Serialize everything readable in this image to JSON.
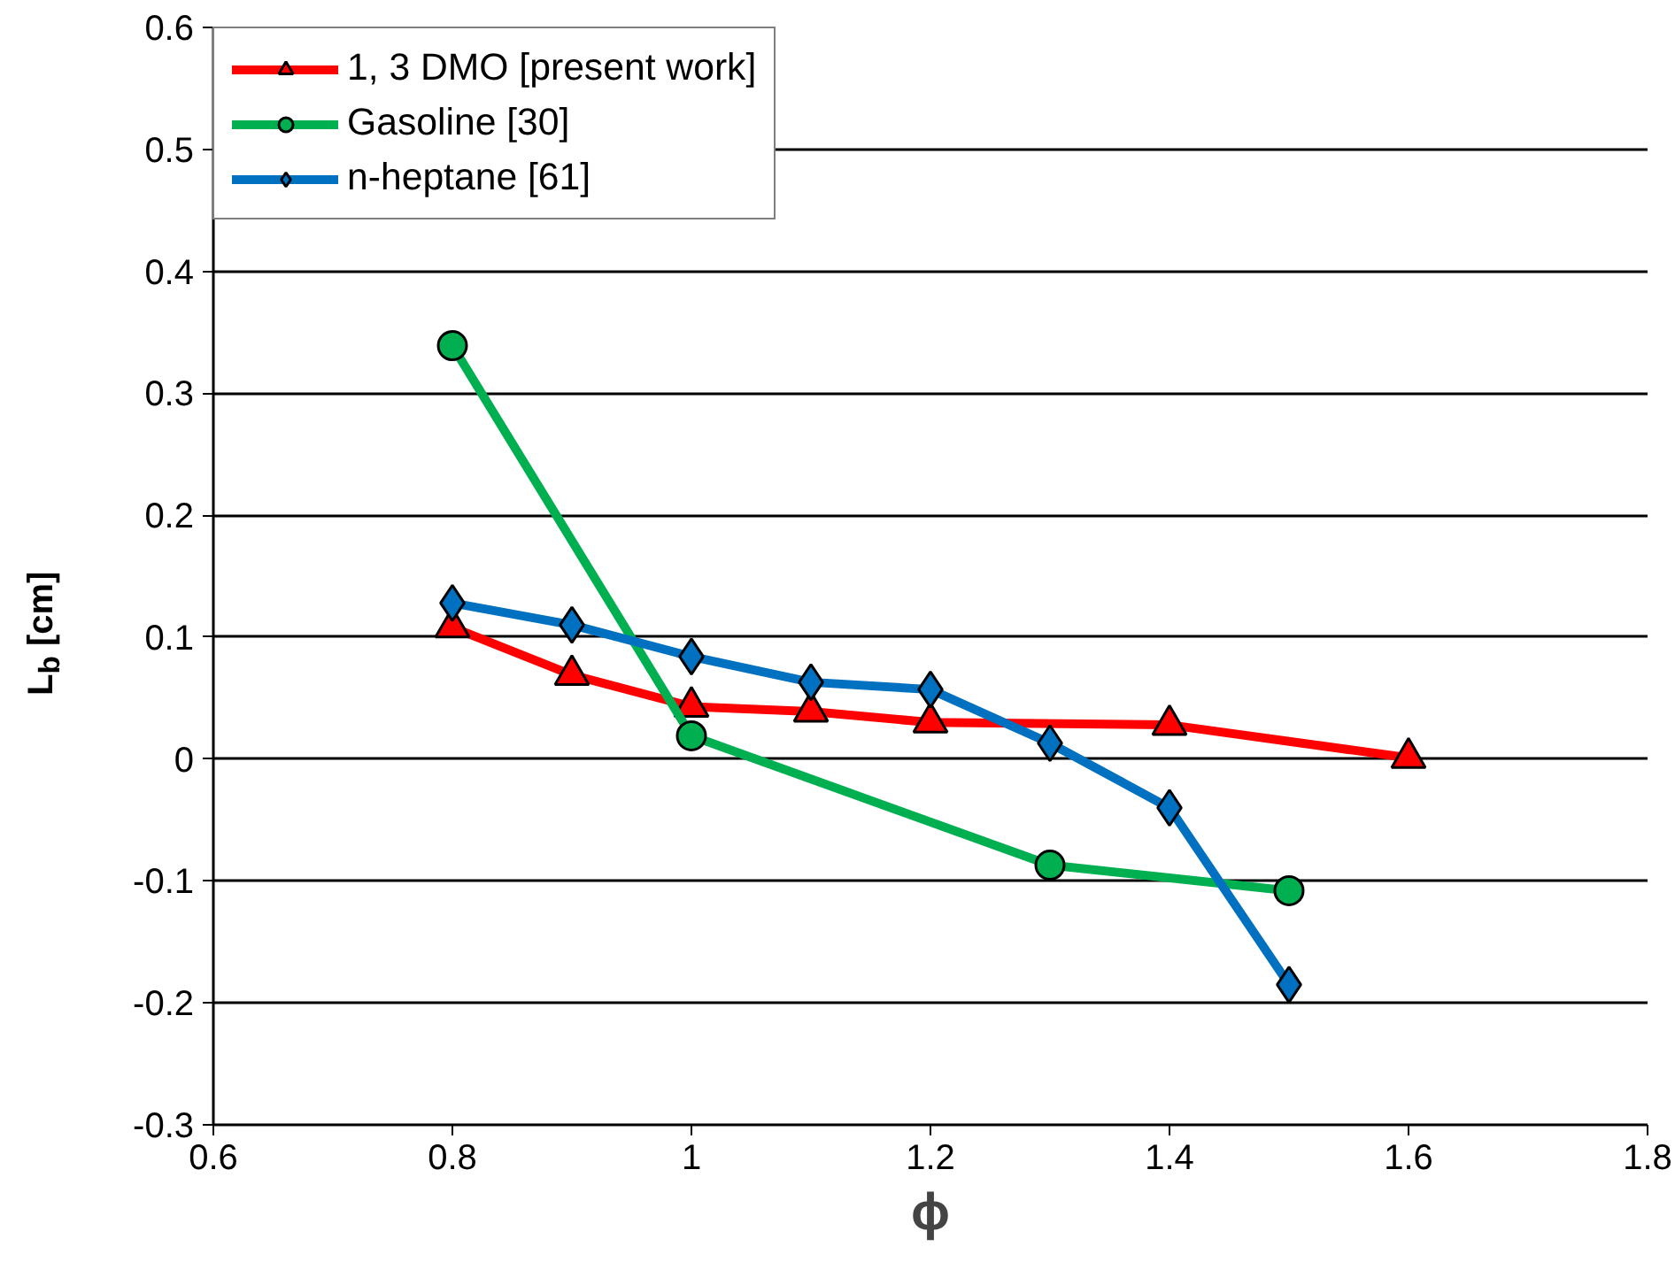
{
  "chart_data": {
    "type": "line",
    "xlabel": "ϕ",
    "ylabel": "L$_{b}$ [cm]",
    "xlim": [
      0.6,
      1.8
    ],
    "xticks": [
      0.6,
      0.8,
      1,
      1.2,
      1.4,
      1.6,
      1.8
    ],
    "ylim": [
      -0.3,
      0.6
    ],
    "yticks": [
      -0.3,
      -0.2,
      -0.1,
      0,
      0.1,
      0.2,
      0.3,
      0.4,
      0.5,
      0.6
    ],
    "grid": "y",
    "legend": "top left",
    "line_style": "solid",
    "series": [
      {
        "name": "1, 3 DMO [present work]",
        "color": "#ff0000",
        "marker": "triangle",
        "x": [
          0.8,
          0.9,
          1.0,
          1.1,
          1.2,
          1.4,
          1.6
        ],
        "values": [
          0.108,
          0.069,
          0.043,
          0.039,
          0.03,
          0.028,
          0.001
        ]
      },
      {
        "name": "Gasoline [30]",
        "color": "#00b050",
        "marker": "circle",
        "x": [
          0.8,
          1.0,
          1.3,
          1.5
        ],
        "values": [
          0.339,
          0.019,
          -0.087,
          -0.108
        ]
      },
      {
        "name": "n-heptane [61]",
        "color": "#0070c0",
        "marker": "diamond",
        "x": [
          0.8,
          0.9,
          1.0,
          1.1,
          1.2,
          1.3,
          1.4,
          1.5
        ],
        "values": [
          0.128,
          0.11,
          0.084,
          0.063,
          0.057,
          0.013,
          -0.04,
          -0.185
        ]
      }
    ]
  }
}
